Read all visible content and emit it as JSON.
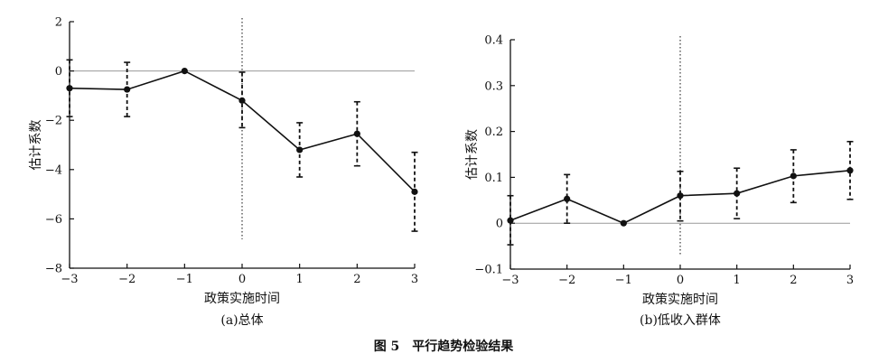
{
  "figure": {
    "caption": "图 5　平行趋势检验结果"
  },
  "chart_data": [
    {
      "type": "line",
      "subcaption": "(a)总体",
      "xlabel": "政策实施时间",
      "ylabel": "估计系数",
      "xlim": [
        -3,
        3
      ],
      "ylim": [
        -8,
        2
      ],
      "x_ticks": [
        "−3",
        "−2",
        "−1",
        "0",
        "1",
        "2",
        "3"
      ],
      "y_ticks": [
        "2",
        "0",
        "−2",
        "−4",
        "−6",
        "−8"
      ],
      "reference_line_y": 0,
      "event_line_x": 0,
      "x": [
        -3,
        -2,
        -1,
        0,
        1,
        2,
        3
      ],
      "series": [
        {
          "values": [
            -0.7,
            -0.75,
            0,
            -1.2,
            -3.2,
            -2.55,
            -4.9
          ],
          "ci_low": [
            -1.85,
            -1.85,
            0,
            -2.3,
            -4.3,
            -3.85,
            -6.5
          ],
          "ci_high": [
            0.45,
            0.35,
            0,
            -0.05,
            -2.1,
            -1.25,
            -3.3
          ]
        }
      ]
    },
    {
      "type": "line",
      "subcaption": "(b)低收入群体",
      "xlabel": "政策实施时间",
      "ylabel": "估计系数",
      "xlim": [
        -3,
        3
      ],
      "ylim": [
        -0.1,
        0.4
      ],
      "x_ticks": [
        "−3",
        "−2",
        "−1",
        "0",
        "1",
        "2",
        "3"
      ],
      "y_ticks": [
        "0.4",
        "0.3",
        "0.2",
        "0.1",
        "0",
        "−0.1"
      ],
      "reference_line_y": 0,
      "event_line_x": 0,
      "x": [
        -3,
        -2,
        -1,
        0,
        1,
        2,
        3
      ],
      "series": [
        {
          "values": [
            0.006,
            0.053,
            0,
            0.06,
            0.065,
            0.103,
            0.115
          ],
          "ci_low": [
            -0.047,
            0.0,
            0,
            0.005,
            0.01,
            0.045,
            0.052
          ],
          "ci_high": [
            0.06,
            0.106,
            0,
            0.113,
            0.12,
            0.16,
            0.178
          ]
        }
      ]
    }
  ]
}
